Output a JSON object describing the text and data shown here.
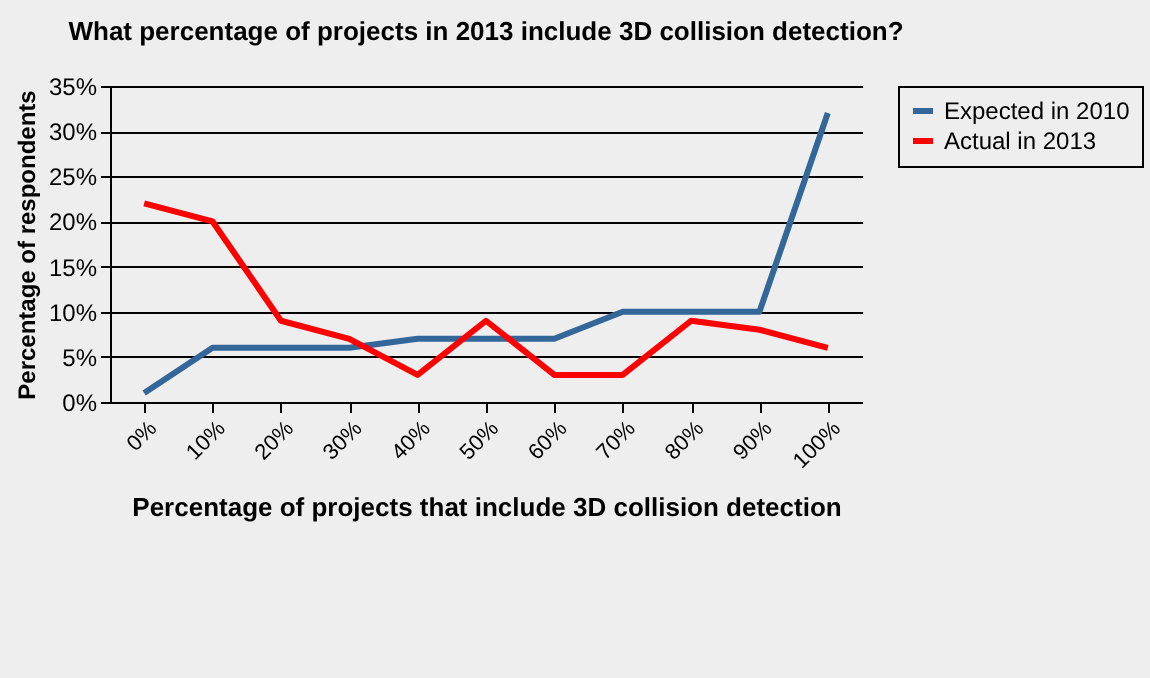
{
  "chart_data": {
    "type": "line",
    "title": "What percentage of projects in 2013 include 3D collision detection?",
    "xlabel": "Percentage of projects that include 3D collision detection",
    "ylabel": "Percentage of respondents",
    "categories": [
      "0%",
      "10%",
      "20%",
      "30%",
      "40%",
      "50%",
      "60%",
      "70%",
      "80%",
      "90%",
      "100%"
    ],
    "series": [
      {
        "name": "Expected in 2010",
        "color": "#336699",
        "values": [
          1,
          6,
          6,
          6,
          7,
          7,
          7,
          10,
          10,
          10,
          32
        ]
      },
      {
        "name": "Actual in 2013",
        "color": "#ff0000",
        "values": [
          22,
          20,
          9,
          7,
          3,
          9,
          3,
          3,
          9,
          8,
          6
        ]
      }
    ],
    "ylim": [
      0,
      35
    ],
    "yticks": [
      {
        "value": 0,
        "label": "0%"
      },
      {
        "value": 5,
        "label": "5%"
      },
      {
        "value": 10,
        "label": "10%"
      },
      {
        "value": 15,
        "label": "15%"
      },
      {
        "value": 20,
        "label": "20%"
      },
      {
        "value": 25,
        "label": "25%"
      },
      {
        "value": 30,
        "label": "30%"
      },
      {
        "value": 35,
        "label": "35%"
      }
    ],
    "grid": "y",
    "legend": "right",
    "marker": "none",
    "line_style": "solid"
  }
}
